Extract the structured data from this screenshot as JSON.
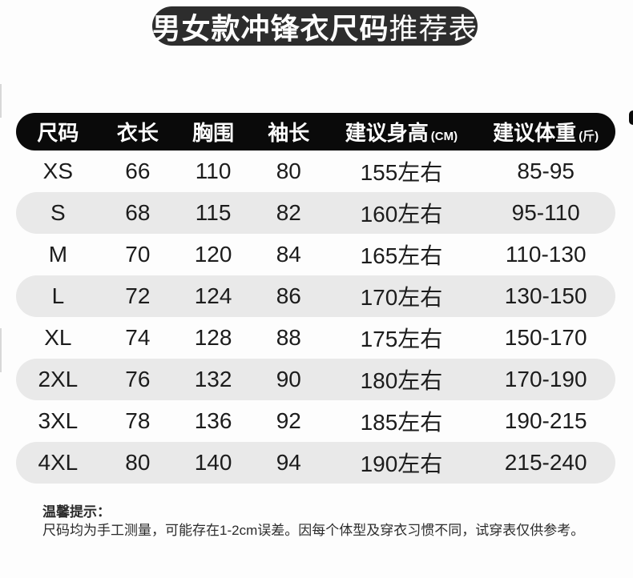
{
  "title": {
    "emphasis": "男女款冲锋衣尺码",
    "suffix": "推荐表"
  },
  "table": {
    "headers": [
      {
        "label": "尺码",
        "unit": ""
      },
      {
        "label": "衣长",
        "unit": ""
      },
      {
        "label": "胸围",
        "unit": ""
      },
      {
        "label": "袖长",
        "unit": ""
      },
      {
        "label": "建议身高",
        "unit": "(CM)"
      },
      {
        "label": "建议体重",
        "unit": "(斤)"
      }
    ],
    "rows": [
      [
        "XS",
        "66",
        "110",
        "80",
        "155左右",
        "85-95"
      ],
      [
        "S",
        "68",
        "115",
        "82",
        "160左右",
        "95-110"
      ],
      [
        "M",
        "70",
        "120",
        "84",
        "165左右",
        "110-130"
      ],
      [
        "L",
        "72",
        "124",
        "86",
        "170左右",
        "130-150"
      ],
      [
        "XL",
        "74",
        "128",
        "88",
        "175左右",
        "150-170"
      ],
      [
        "2XL",
        "76",
        "132",
        "90",
        "180左右",
        "170-190"
      ],
      [
        "3XL",
        "78",
        "136",
        "92",
        "185左右",
        "190-215"
      ],
      [
        "4XL",
        "80",
        "140",
        "94",
        "190左右",
        "215-240"
      ]
    ]
  },
  "footer": {
    "title": "温馨提示：",
    "body": "尺码均为手工测量，可能存在1-2cm误差。因每个体型及穿衣习惯不同，试穿表仅供参考。"
  },
  "colors": {
    "title_pill_bg": "#2d2d2d",
    "header_bar_bg": "#0a0a0a",
    "row_stripe_bg": "#e9e9e9",
    "text": "#1c1c1c",
    "header_text": "#ffffff"
  }
}
